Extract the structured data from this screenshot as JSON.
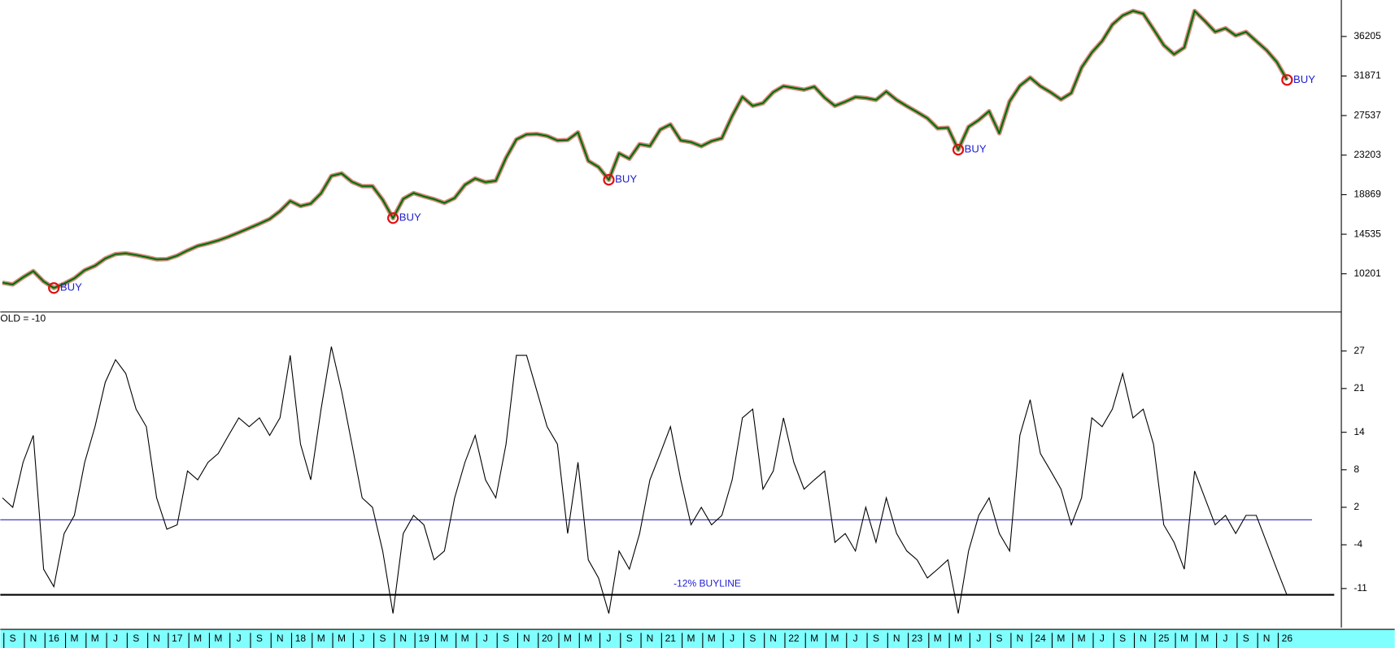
{
  "chart_data": [
    {
      "type": "line",
      "panel": "top",
      "ylim": [
        6110,
        40200
      ],
      "yticks": [
        10201,
        14535,
        18869,
        23203,
        27537,
        31871,
        36205
      ],
      "series": [
        {
          "color": "#1f9a1f",
          "values": [
            9230,
            9030,
            9810,
            10490,
            9360,
            8640,
            9120,
            9700,
            10590,
            11080,
            11870,
            12350,
            12440,
            12260,
            12030,
            11780,
            11810,
            12190,
            12750,
            13250,
            13530,
            13850,
            14260,
            14720,
            15200,
            15680,
            16200,
            17070,
            18180,
            17620,
            17890,
            19020,
            20920,
            21200,
            20280,
            19790,
            19800,
            18300,
            16300,
            18400,
            19040,
            18680,
            18370,
            17960,
            18500,
            19950,
            20640,
            20230,
            20390,
            22900,
            24920,
            25470,
            25510,
            25300,
            24810,
            24860,
            25700,
            22570,
            21900,
            20500,
            23400,
            22800,
            24400,
            24200,
            26000,
            26560,
            24810,
            24630,
            24180,
            24730,
            25050,
            27500,
            29580,
            28600,
            28900,
            30100,
            30760,
            30570,
            30370,
            30700,
            29500,
            28600,
            29050,
            29560,
            29470,
            29250,
            30170,
            29250,
            28570,
            27920,
            27250,
            26140,
            26200,
            23800,
            26300,
            27050,
            28020,
            25600,
            29100,
            30800,
            31700,
            30750,
            30080,
            29300,
            30000,
            32800,
            34440,
            35700,
            37500,
            38500,
            39000,
            38700,
            37000,
            35250,
            34250,
            35000,
            39000,
            37900,
            36700,
            37100,
            36300,
            36700,
            35700,
            34700,
            33400,
            31440
          ]
        }
      ],
      "annotations": [
        {
          "text": "BUY",
          "index": 5
        },
        {
          "text": "BUY",
          "index": 38
        },
        {
          "text": "BUY",
          "index": 59
        },
        {
          "text": "BUY",
          "index": 93
        },
        {
          "text": "BUY",
          "index": 125
        }
      ],
      "marker_color": "#e01010",
      "annotation_color": "#2020d0"
    },
    {
      "type": "line",
      "panel": "bottom",
      "title": "OLD = -10",
      "ylim": [
        -17.1,
        33.1
      ],
      "yticks": [
        27,
        21,
        14,
        8,
        2,
        -4,
        -11
      ],
      "categories": [
        null,
        "S",
        null,
        "N",
        null,
        "16",
        null,
        "M",
        null,
        "M",
        null,
        "J",
        null,
        "S",
        null,
        "N",
        null,
        "17",
        null,
        "M",
        null,
        "M",
        null,
        "J",
        null,
        "S",
        null,
        "N",
        null,
        "18",
        null,
        "M",
        null,
        "M",
        null,
        "J",
        null,
        "S",
        null,
        "N",
        null,
        "19",
        null,
        "M",
        null,
        "M",
        null,
        "J",
        null,
        "S",
        null,
        "N",
        null,
        "20",
        null,
        "M",
        null,
        "M",
        null,
        "J",
        null,
        "S",
        null,
        "N",
        null,
        "21",
        null,
        "M",
        null,
        "M",
        null,
        "J",
        null,
        "S",
        null,
        "N",
        null,
        "22",
        null,
        "M",
        null,
        "M",
        null,
        "J",
        null,
        "S",
        null,
        "N",
        null,
        "23",
        null,
        "M",
        null,
        "M",
        null,
        "J",
        null,
        "S",
        null,
        "N",
        null,
        "24",
        null,
        "M",
        null,
        "M",
        null,
        "J",
        null,
        "S",
        null,
        "N",
        null,
        "25",
        null,
        "M",
        null,
        "M",
        null,
        "J",
        null,
        "S",
        null,
        "N",
        null,
        "26"
      ],
      "series": [
        {
          "color": "#000000",
          "values": [
            3.5,
            2,
            9.2,
            13.5,
            -7.9,
            -10.7,
            -2.2,
            0.7,
            9.2,
            14.9,
            22,
            25.6,
            23.4,
            17.7,
            14.9,
            3.5,
            -1.5,
            -0.8,
            7.8,
            6.4,
            9.2,
            10.6,
            13.5,
            16.3,
            14.9,
            16.3,
            13.5,
            16.3,
            26.3,
            12.1,
            6.4,
            17.7,
            27.7,
            20.6,
            12.1,
            3.5,
            2,
            -5,
            -15,
            -2.2,
            0.7,
            -0.8,
            -6.4,
            -5,
            3.5,
            9.2,
            13.5,
            6.4,
            3.5,
            12.1,
            26.3,
            26.3,
            20.6,
            14.9,
            12.1,
            -2.2,
            9.2,
            -6.4,
            -9.3,
            -15,
            -5,
            -7.9,
            -2.2,
            6.4,
            10.6,
            14.9,
            6.4,
            -0.8,
            2,
            -0.8,
            0.7,
            6.4,
            16.3,
            17.7,
            4.9,
            7.8,
            16.3,
            9.2,
            4.9,
            6.4,
            7.8,
            -3.6,
            -2.2,
            -5,
            2,
            -3.6,
            3.5,
            -2.2,
            -5,
            -6.4,
            -9.3,
            -7.9,
            -6.4,
            -15,
            -5,
            0.7,
            3.5,
            -2.2,
            -5,
            13.5,
            19.2,
            10.6,
            7.8,
            4.9,
            -0.8,
            3.5,
            16.3,
            14.9,
            17.7,
            23.4,
            16.3,
            17.7,
            12.1,
            -0.8,
            -3.6,
            -7.9,
            7.8,
            3.5,
            -0.8,
            0.7,
            -2.2,
            0.7,
            0.7,
            -3.6,
            -7.9,
            -12.1
          ]
        }
      ],
      "hlines": [
        {
          "value": 0,
          "color": "#2a2ac0"
        },
        {
          "value": -12,
          "color": "#000000",
          "label": "-12% BUYLINE"
        }
      ],
      "axis_color": "#80ffff"
    }
  ]
}
